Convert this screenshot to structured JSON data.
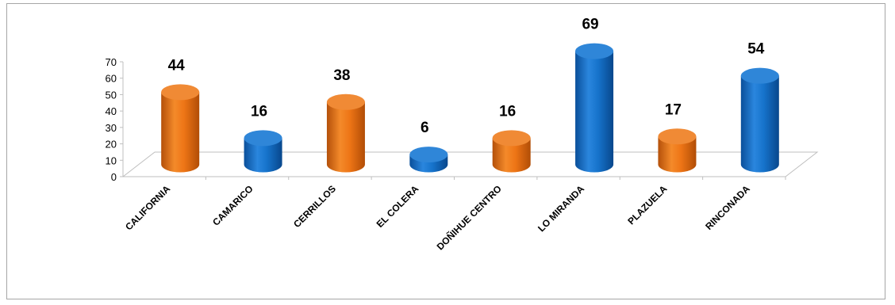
{
  "chart_data": {
    "type": "bar",
    "style": "3d-cylinder",
    "title": "",
    "xlabel": "",
    "ylabel": "",
    "ylim": [
      0,
      70
    ],
    "yticks": [
      0,
      10,
      20,
      30,
      40,
      50,
      60,
      70
    ],
    "grid": false,
    "legend": "none",
    "categories": [
      "CALIFORNIA",
      "CAMARICO",
      "CERRILLOS",
      "EL COLERA",
      "DOÑIHUE CENTRO",
      "LO MIRANDA",
      "PLAZUELA",
      "RINCONADA"
    ],
    "values": [
      44,
      16,
      38,
      6,
      16,
      69,
      17,
      54
    ],
    "bar_colors": [
      "#e36c0a",
      "#0f6fc6",
      "#e36c0a",
      "#0f6fc6",
      "#e36c0a",
      "#0f6fc6",
      "#e36c0a",
      "#0f6fc6"
    ],
    "data_labels": [
      "44",
      "16",
      "38",
      "6",
      "16",
      "69",
      "17",
      "54"
    ]
  }
}
